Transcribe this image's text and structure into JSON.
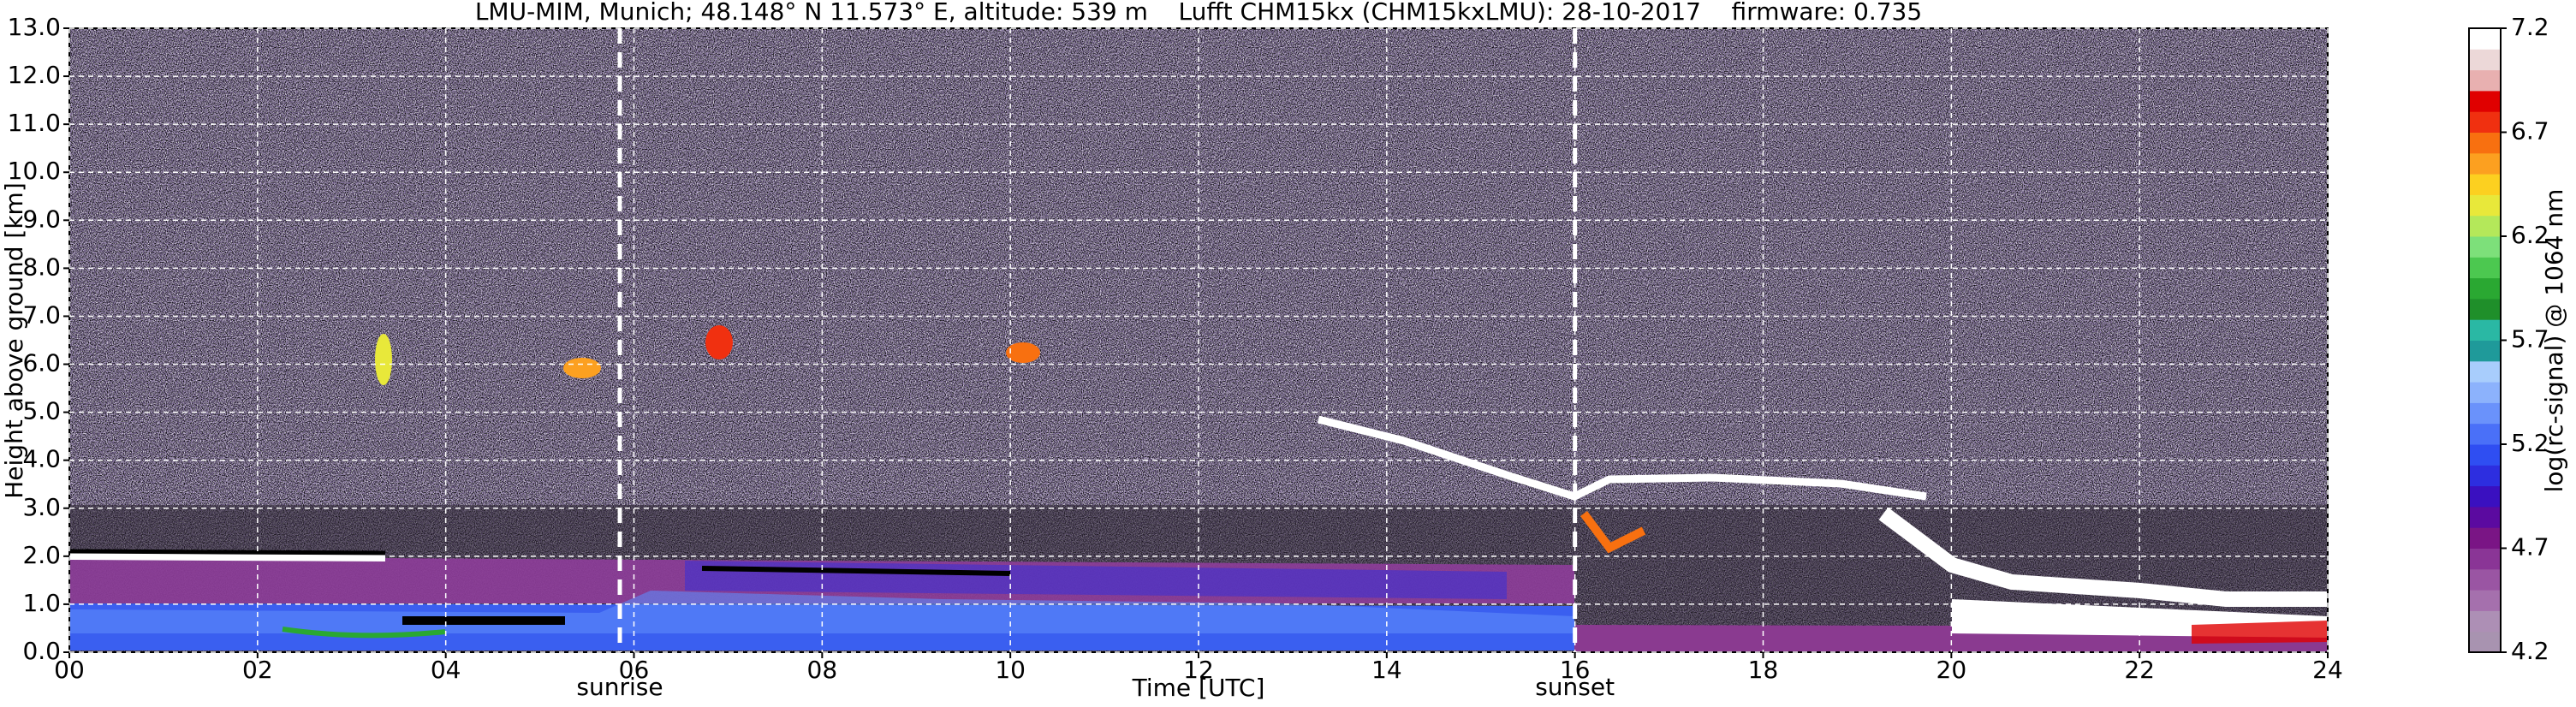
{
  "chart_data": {
    "type": "heatmap",
    "title": "LMU-MIM, Munich; 48.148° N 11.573° E, altitude: 539 m    Lufft CHM15kx (CHM15kxLMU): 28-10-2017    firmware: 0.735",
    "x_label": "Time [UTC]",
    "y_label": "Height above ground [km]",
    "xlim": [
      0,
      24
    ],
    "xticks": [
      {
        "value": 0,
        "label": "00"
      },
      {
        "value": 2,
        "label": "02"
      },
      {
        "value": 4,
        "label": "04"
      },
      {
        "value": 6,
        "label": "06"
      },
      {
        "value": 8,
        "label": "08"
      },
      {
        "value": 10,
        "label": "10"
      },
      {
        "value": 12,
        "label": "12"
      },
      {
        "value": 14,
        "label": "14"
      },
      {
        "value": 16,
        "label": "16"
      },
      {
        "value": 18,
        "label": "18"
      },
      {
        "value": 20,
        "label": "20"
      },
      {
        "value": 22,
        "label": "22"
      },
      {
        "value": 24,
        "label": "24"
      }
    ],
    "ylim": [
      0,
      13
    ],
    "yticks": [
      {
        "value": 0,
        "label": "0.0"
      },
      {
        "value": 1,
        "label": "1.0"
      },
      {
        "value": 2,
        "label": "2.0"
      },
      {
        "value": 3,
        "label": "3.0"
      },
      {
        "value": 4,
        "label": "4.0"
      },
      {
        "value": 5,
        "label": "5.0"
      },
      {
        "value": 6,
        "label": "6.0"
      },
      {
        "value": 7,
        "label": "7.0"
      },
      {
        "value": 8,
        "label": "8.0"
      },
      {
        "value": 9,
        "label": "9.0"
      },
      {
        "value": 10,
        "label": "10.0"
      },
      {
        "value": 11,
        "label": "11.0"
      },
      {
        "value": 12,
        "label": "12.0"
      },
      {
        "value": 13,
        "label": "13.0"
      }
    ],
    "grid": true,
    "markers": [
      {
        "label": "sunrise",
        "x": 5.85
      },
      {
        "label": "sunset",
        "x": 16.0
      }
    ],
    "colorbar": {
      "label": "log(rc-signal) @ 1064 nm",
      "clim": [
        4.2,
        7.2
      ],
      "ticks": [
        4.2,
        4.7,
        5.2,
        5.7,
        6.2,
        6.7,
        7.2
      ],
      "colors": [
        "#a893b0",
        "#ad8fb5",
        "#a570ad",
        "#9a55a3",
        "#8a3596",
        "#7a1585",
        "#5b0aa0",
        "#3a10c0",
        "#2d2ee0",
        "#2f4ef2",
        "#4a70f8",
        "#6a92fb",
        "#8cb2fc",
        "#a8cdfc",
        "#1f9a9a",
        "#2ab8a4",
        "#1f8f2a",
        "#2aa832",
        "#4cc850",
        "#7de07a",
        "#b4e85a",
        "#e8e83a",
        "#fcd020",
        "#fca020",
        "#f87010",
        "#f03010",
        "#e00000",
        "#e8b0b0",
        "#ecd8d8",
        "#ffffff"
      ]
    }
  }
}
